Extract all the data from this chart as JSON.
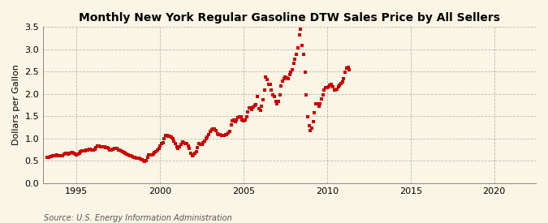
{
  "title": "Monthly New York Regular Gasoline DTW Sales Price by All Sellers",
  "ylabel": "Dollars per Gallon",
  "source": "Source: U.S. Energy Information Administration",
  "xlim": [
    1993.0,
    2022.5
  ],
  "ylim": [
    0.0,
    3.5
  ],
  "xticks": [
    1995,
    2000,
    2005,
    2010,
    2015,
    2020
  ],
  "yticks": [
    0.0,
    0.5,
    1.0,
    1.5,
    2.0,
    2.5,
    3.0,
    3.5
  ],
  "background_color": "#FAF5E4",
  "marker_color": "#CC0000",
  "marker": "s",
  "marker_size": 3.2,
  "grid_color": "#AAAAAA",
  "title_fontsize": 10,
  "label_fontsize": 8,
  "tick_fontsize": 8,
  "data": [
    [
      1993.25,
      0.57
    ],
    [
      1993.33,
      0.58
    ],
    [
      1993.42,
      0.59
    ],
    [
      1993.5,
      0.6
    ],
    [
      1993.58,
      0.61
    ],
    [
      1993.67,
      0.62
    ],
    [
      1993.75,
      0.62
    ],
    [
      1993.83,
      0.63
    ],
    [
      1993.92,
      0.62
    ],
    [
      1994.0,
      0.61
    ],
    [
      1994.08,
      0.61
    ],
    [
      1994.17,
      0.62
    ],
    [
      1994.25,
      0.65
    ],
    [
      1994.33,
      0.67
    ],
    [
      1994.42,
      0.67
    ],
    [
      1994.5,
      0.66
    ],
    [
      1994.58,
      0.67
    ],
    [
      1994.67,
      0.68
    ],
    [
      1994.75,
      0.68
    ],
    [
      1994.83,
      0.67
    ],
    [
      1994.92,
      0.65
    ],
    [
      1995.0,
      0.64
    ],
    [
      1995.08,
      0.65
    ],
    [
      1995.17,
      0.67
    ],
    [
      1995.25,
      0.7
    ],
    [
      1995.33,
      0.72
    ],
    [
      1995.42,
      0.72
    ],
    [
      1995.5,
      0.73
    ],
    [
      1995.58,
      0.74
    ],
    [
      1995.67,
      0.75
    ],
    [
      1995.75,
      0.76
    ],
    [
      1995.83,
      0.76
    ],
    [
      1995.92,
      0.74
    ],
    [
      1996.0,
      0.74
    ],
    [
      1996.08,
      0.76
    ],
    [
      1996.17,
      0.8
    ],
    [
      1996.25,
      0.83
    ],
    [
      1996.33,
      0.84
    ],
    [
      1996.42,
      0.82
    ],
    [
      1996.5,
      0.81
    ],
    [
      1996.58,
      0.81
    ],
    [
      1996.67,
      0.81
    ],
    [
      1996.75,
      0.8
    ],
    [
      1996.83,
      0.79
    ],
    [
      1996.92,
      0.77
    ],
    [
      1997.0,
      0.75
    ],
    [
      1997.08,
      0.75
    ],
    [
      1997.17,
      0.76
    ],
    [
      1997.25,
      0.77
    ],
    [
      1997.33,
      0.78
    ],
    [
      1997.42,
      0.77
    ],
    [
      1997.5,
      0.75
    ],
    [
      1997.58,
      0.74
    ],
    [
      1997.67,
      0.72
    ],
    [
      1997.75,
      0.71
    ],
    [
      1997.83,
      0.69
    ],
    [
      1997.92,
      0.67
    ],
    [
      1998.0,
      0.65
    ],
    [
      1998.08,
      0.63
    ],
    [
      1998.17,
      0.61
    ],
    [
      1998.25,
      0.61
    ],
    [
      1998.33,
      0.59
    ],
    [
      1998.42,
      0.58
    ],
    [
      1998.5,
      0.57
    ],
    [
      1998.58,
      0.56
    ],
    [
      1998.67,
      0.56
    ],
    [
      1998.75,
      0.56
    ],
    [
      1998.83,
      0.55
    ],
    [
      1998.92,
      0.53
    ],
    [
      1999.0,
      0.5
    ],
    [
      1999.08,
      0.49
    ],
    [
      1999.17,
      0.5
    ],
    [
      1999.25,
      0.58
    ],
    [
      1999.33,
      0.63
    ],
    [
      1999.42,
      0.64
    ],
    [
      1999.5,
      0.64
    ],
    [
      1999.58,
      0.66
    ],
    [
      1999.67,
      0.68
    ],
    [
      1999.75,
      0.71
    ],
    [
      1999.83,
      0.74
    ],
    [
      1999.92,
      0.78
    ],
    [
      2000.0,
      0.83
    ],
    [
      2000.08,
      0.88
    ],
    [
      2000.17,
      0.91
    ],
    [
      2000.25,
      1.0
    ],
    [
      2000.33,
      1.07
    ],
    [
      2000.42,
      1.07
    ],
    [
      2000.5,
      1.05
    ],
    [
      2000.58,
      1.05
    ],
    [
      2000.67,
      1.04
    ],
    [
      2000.75,
      1.0
    ],
    [
      2000.83,
      0.95
    ],
    [
      2000.92,
      0.88
    ],
    [
      2001.0,
      0.82
    ],
    [
      2001.08,
      0.78
    ],
    [
      2001.17,
      0.82
    ],
    [
      2001.25,
      0.87
    ],
    [
      2001.33,
      0.92
    ],
    [
      2001.42,
      0.9
    ],
    [
      2001.5,
      0.88
    ],
    [
      2001.58,
      0.88
    ],
    [
      2001.67,
      0.84
    ],
    [
      2001.75,
      0.77
    ],
    [
      2001.83,
      0.67
    ],
    [
      2001.92,
      0.62
    ],
    [
      2002.0,
      0.64
    ],
    [
      2002.08,
      0.67
    ],
    [
      2002.17,
      0.71
    ],
    [
      2002.25,
      0.8
    ],
    [
      2002.33,
      0.88
    ],
    [
      2002.42,
      0.87
    ],
    [
      2002.5,
      0.86
    ],
    [
      2002.58,
      0.9
    ],
    [
      2002.67,
      0.95
    ],
    [
      2002.75,
      0.99
    ],
    [
      2002.83,
      1.04
    ],
    [
      2002.92,
      1.09
    ],
    [
      2003.0,
      1.15
    ],
    [
      2003.08,
      1.2
    ],
    [
      2003.17,
      1.22
    ],
    [
      2003.25,
      1.22
    ],
    [
      2003.33,
      1.18
    ],
    [
      2003.42,
      1.11
    ],
    [
      2003.5,
      1.08
    ],
    [
      2003.58,
      1.08
    ],
    [
      2003.67,
      1.07
    ],
    [
      2003.75,
      1.07
    ],
    [
      2003.83,
      1.07
    ],
    [
      2003.92,
      1.08
    ],
    [
      2004.0,
      1.09
    ],
    [
      2004.08,
      1.12
    ],
    [
      2004.17,
      1.16
    ],
    [
      2004.25,
      1.31
    ],
    [
      2004.33,
      1.39
    ],
    [
      2004.42,
      1.41
    ],
    [
      2004.5,
      1.37
    ],
    [
      2004.58,
      1.41
    ],
    [
      2004.67,
      1.46
    ],
    [
      2004.75,
      1.49
    ],
    [
      2004.83,
      1.49
    ],
    [
      2004.92,
      1.42
    ],
    [
      2005.0,
      1.39
    ],
    [
      2005.08,
      1.41
    ],
    [
      2005.17,
      1.49
    ],
    [
      2005.25,
      1.59
    ],
    [
      2005.33,
      1.68
    ],
    [
      2005.42,
      1.68
    ],
    [
      2005.5,
      1.64
    ],
    [
      2005.58,
      1.71
    ],
    [
      2005.67,
      1.74
    ],
    [
      2005.75,
      1.76
    ],
    [
      2005.83,
      1.93
    ],
    [
      2005.92,
      1.67
    ],
    [
      2006.0,
      1.63
    ],
    [
      2006.08,
      1.73
    ],
    [
      2006.17,
      1.87
    ],
    [
      2006.25,
      2.08
    ],
    [
      2006.33,
      2.38
    ],
    [
      2006.42,
      2.32
    ],
    [
      2006.5,
      2.22
    ],
    [
      2006.58,
      2.22
    ],
    [
      2006.67,
      2.08
    ],
    [
      2006.75,
      1.98
    ],
    [
      2006.83,
      1.93
    ],
    [
      2006.92,
      1.83
    ],
    [
      2007.0,
      1.78
    ],
    [
      2007.08,
      1.83
    ],
    [
      2007.17,
      1.98
    ],
    [
      2007.25,
      2.17
    ],
    [
      2007.33,
      2.28
    ],
    [
      2007.42,
      2.33
    ],
    [
      2007.5,
      2.38
    ],
    [
      2007.58,
      2.36
    ],
    [
      2007.67,
      2.33
    ],
    [
      2007.75,
      2.43
    ],
    [
      2007.83,
      2.48
    ],
    [
      2007.92,
      2.53
    ],
    [
      2008.0,
      2.68
    ],
    [
      2008.08,
      2.78
    ],
    [
      2008.17,
      2.88
    ],
    [
      2008.25,
      3.02
    ],
    [
      2008.33,
      3.32
    ],
    [
      2008.42,
      3.45
    ],
    [
      2008.5,
      3.08
    ],
    [
      2008.58,
      2.88
    ],
    [
      2008.67,
      2.48
    ],
    [
      2008.75,
      1.98
    ],
    [
      2008.83,
      1.48
    ],
    [
      2008.92,
      1.28
    ],
    [
      2009.0,
      1.18
    ],
    [
      2009.08,
      1.24
    ],
    [
      2009.17,
      1.38
    ],
    [
      2009.25,
      1.58
    ],
    [
      2009.33,
      1.78
    ],
    [
      2009.42,
      1.78
    ],
    [
      2009.5,
      1.73
    ],
    [
      2009.58,
      1.78
    ],
    [
      2009.67,
      1.88
    ],
    [
      2009.75,
      1.98
    ],
    [
      2009.83,
      2.08
    ],
    [
      2009.92,
      2.13
    ],
    [
      2010.0,
      2.13
    ],
    [
      2010.08,
      2.16
    ],
    [
      2010.17,
      2.2
    ],
    [
      2010.25,
      2.22
    ],
    [
      2010.33,
      2.16
    ],
    [
      2010.42,
      2.08
    ],
    [
      2010.5,
      2.08
    ],
    [
      2010.58,
      2.1
    ],
    [
      2010.67,
      2.16
    ],
    [
      2010.75,
      2.2
    ],
    [
      2010.83,
      2.23
    ],
    [
      2010.92,
      2.27
    ],
    [
      2011.0,
      2.34
    ],
    [
      2011.08,
      2.48
    ],
    [
      2011.17,
      2.58
    ],
    [
      2011.25,
      2.6
    ],
    [
      2011.33,
      2.53
    ]
  ]
}
